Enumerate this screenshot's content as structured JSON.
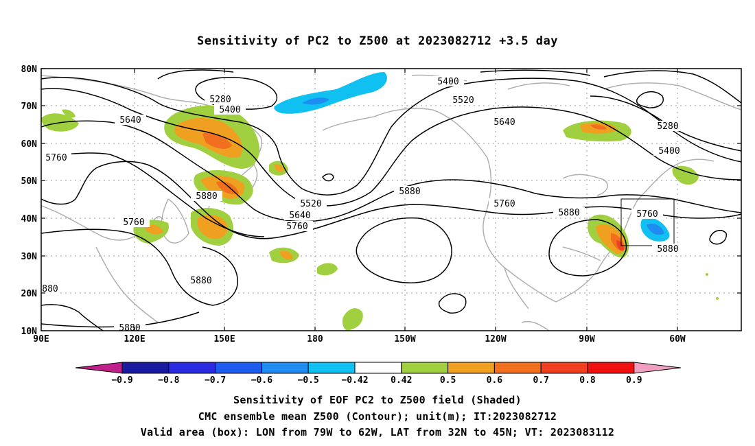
{
  "title": "Sensitivity of PC2 to Z500 at 2023082712 +3.5 day",
  "lat_labels": [
    "80N",
    "70N",
    "60N",
    "50N",
    "40N",
    "30N",
    "20N",
    "10N"
  ],
  "lon_labels": [
    "90E",
    "120E",
    "150E",
    "180",
    "150W",
    "120W",
    "90W",
    "60W"
  ],
  "contour_labels": [
    "5280",
    "5400",
    "5640",
    "5760",
    "5880",
    "5760",
    "5400",
    "5520",
    "5640",
    "5880",
    "5520",
    "5640",
    "5760",
    "5760",
    "5880",
    "5280",
    "5400",
    "5760",
    "5880",
    "5880",
    "880",
    "5880"
  ],
  "colorbar": {
    "labels": [
      "-0.9",
      "-0.8",
      "-0.7",
      "-0.6",
      "-0.5",
      "-0.42",
      "0.42",
      "0.5",
      "0.6",
      "0.7",
      "0.8",
      "0.9"
    ],
    "colors": [
      "#1a1aa0",
      "#2a2ae0",
      "#1e5cf0",
      "#1e8cf0",
      "#10c0f0",
      "#ffffff",
      "#a0d040",
      "#f0a020",
      "#f07020",
      "#f04020",
      "#f01010"
    ],
    "low_arrow_color": "#c0208a",
    "high_arrow_color": "#f0a0c0"
  },
  "footer": {
    "line1": "Sensitivity of EOF PC2 to Z500 field (Shaded)",
    "line2": "CMC ensemble mean Z500 (Contour); unit(m); IT:2023082712",
    "line3": "Valid area (box): LON from 79W to 62W, LAT from 32N to 45N; VT: 2023083112"
  }
}
